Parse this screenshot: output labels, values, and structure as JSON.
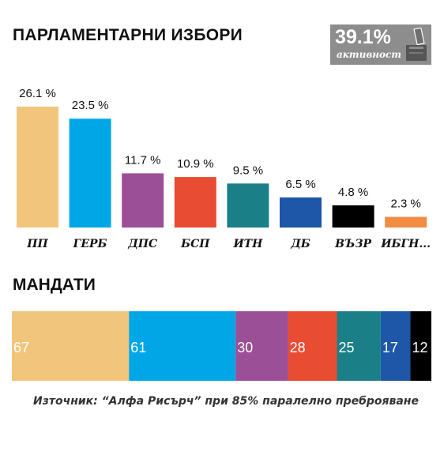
{
  "header": {
    "title": "ПАРЛАМЕНТАРНИ ИЗБОРИ"
  },
  "turnout": {
    "value": "39.1%",
    "label": "активност",
    "icon": "ballot-box-icon"
  },
  "colors": {
    "ПП": "#F2C57C",
    "ГЕРБ": "#00A6E6",
    "ДПС": "#9A4F97",
    "БСП": "#E84C33",
    "ИТН": "#1A7F86",
    "ДБ": "#1E56A8",
    "ВЪЗР": "#000000",
    "ИБГН": "#F28C45"
  },
  "chart_data": [
    {
      "type": "bar",
      "categories": [
        "ПП",
        "ГЕРБ",
        "ДПС",
        "БСП",
        "ИТН",
        "ДБ",
        "ВЪЗР",
        "ИБГН..."
      ],
      "values": [
        26.1,
        23.5,
        11.7,
        10.9,
        9.5,
        6.5,
        4.8,
        2.3
      ],
      "value_labels": [
        "26.1 %",
        "23.5 %",
        "11.7 %",
        "10.9 %",
        "9.5 %",
        "6.5 %",
        "4.8 %",
        "2.3 %"
      ],
      "colors": [
        "#F2C57C",
        "#00A6E6",
        "#9A4F97",
        "#E84C33",
        "#1A7F86",
        "#1E56A8",
        "#000000",
        "#F28C45"
      ]
    },
    {
      "type": "bar",
      "stacked": true,
      "orientation": "horizontal",
      "title": "МАНДАТИ",
      "categories": [
        "ПП",
        "ГЕРБ",
        "ДПС",
        "БСП",
        "ИТН",
        "ДБ",
        "ВЪЗР"
      ],
      "values": [
        67,
        61,
        30,
        28,
        25,
        17,
        12
      ],
      "colors": [
        "#F2C57C",
        "#00A6E6",
        "#9A4F97",
        "#E84C33",
        "#1A7F86",
        "#1E56A8",
        "#000000"
      ]
    }
  ],
  "seats_title": "МАНДАТИ",
  "footer": {
    "source": "Източник: “Алфа Рисърч” при 85% паралелно преброяване"
  }
}
